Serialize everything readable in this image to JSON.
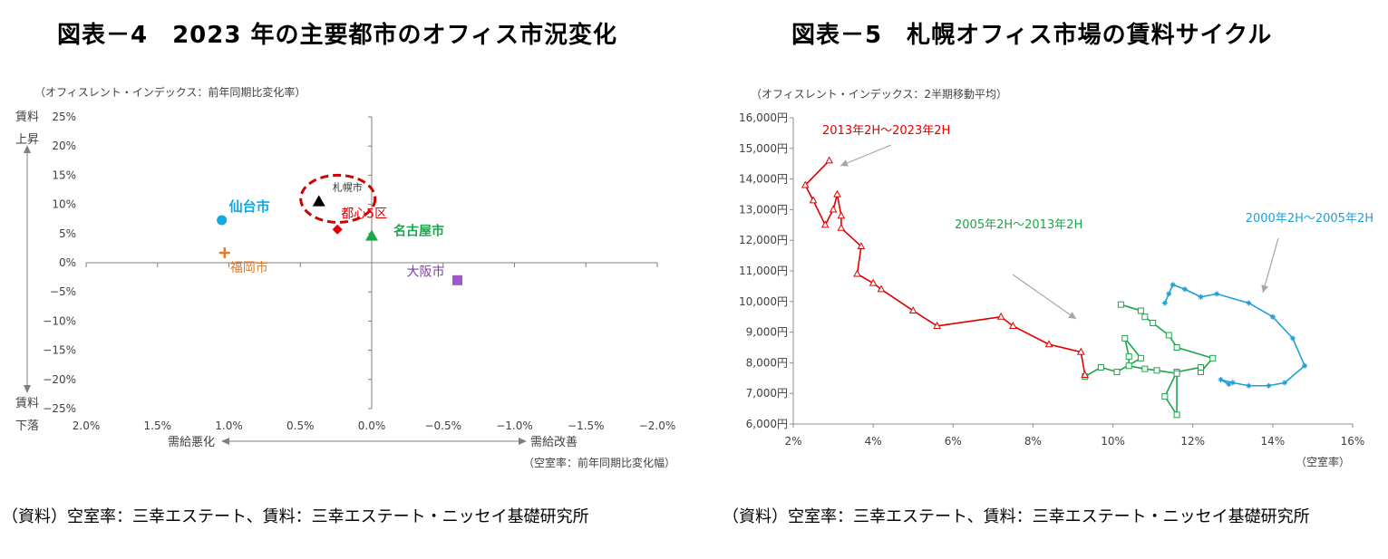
{
  "left": {
    "title": "図表－4　2023 年の主要都市のオフィス市況変化",
    "source": "（資料）空室率：三幸エステート、賃料：三幸エステート・ニッセイ基礎研究所"
  },
  "right": {
    "title": "図表－5　札幌オフィス市場の賃料サイクル",
    "source": "（資料）空室率：三幸エステート、賃料：三幸エステート・ニッセイ基礎研究所"
  },
  "chart_data": [
    {
      "type": "scatter",
      "y_caption": "（オフィスレント・インデックス：前年同期比変化率）",
      "x_caption": "（空室率：前年同期比変化幅）",
      "y_top_label_1": "賃料",
      "y_top_label_2": "上昇",
      "y_bottom_label_1": "賃料",
      "y_bottom_label_2": "下落",
      "x_left_label": "需給悪化",
      "x_right_label": "需給改善",
      "xlim": [
        2.0,
        -2.0
      ],
      "ylim": [
        -25,
        25
      ],
      "x_ticks": [
        {
          "v": 2.0,
          "label": "2.0%"
        },
        {
          "v": 1.5,
          "label": "1.5%"
        },
        {
          "v": 1.0,
          "label": "1.0%"
        },
        {
          "v": 0.5,
          "label": "0.5%"
        },
        {
          "v": 0.0,
          "label": "0.0%"
        },
        {
          "v": -0.5,
          "label": "−0.5%"
        },
        {
          "v": -1.0,
          "label": "−1.0%"
        },
        {
          "v": -1.5,
          "label": "−1.5%"
        },
        {
          "v": -2.0,
          "label": "−2.0%"
        }
      ],
      "y_ticks": [
        {
          "v": 25,
          "label": "25%"
        },
        {
          "v": 20,
          "label": "20%"
        },
        {
          "v": 15,
          "label": "15%"
        },
        {
          "v": 10,
          "label": "10%"
        },
        {
          "v": 5,
          "label": "5%"
        },
        {
          "v": 0,
          "label": "0%"
        },
        {
          "v": -5,
          "label": "−5%"
        },
        {
          "v": -10,
          "label": "−10%"
        },
        {
          "v": -15,
          "label": "−15%"
        },
        {
          "v": -20,
          "label": "−20%"
        },
        {
          "v": -25,
          "label": "−25%"
        }
      ],
      "points": [
        {
          "name": "札幌市",
          "x": 0.37,
          "y": 10.5,
          "marker": "triangle",
          "color": "#000000",
          "label_color": "#333333",
          "bold": false
        },
        {
          "name": "都心5区",
          "x": 0.24,
          "y": 5.7,
          "marker": "diamond",
          "color": "#e00000",
          "label_color": "#e00000",
          "bold": false
        },
        {
          "name": "名古屋市",
          "x": 0.0,
          "y": 4.6,
          "marker": "triangle",
          "color": "#1aa64a",
          "label_color": "#1aa64a",
          "bold": true
        },
        {
          "name": "仙台市",
          "x": 1.05,
          "y": 7.3,
          "marker": "circle",
          "color": "#12a8e0",
          "label_color": "#12a8e0",
          "bold": true
        },
        {
          "name": "福岡市",
          "x": 1.03,
          "y": 1.7,
          "marker": "plus",
          "color": "#e07b28",
          "label_color": "#e07b28",
          "bold": false
        },
        {
          "name": "大阪市",
          "x": -0.6,
          "y": -3.0,
          "marker": "square",
          "color": "#9b59c9",
          "label_color": "#7b3fa8",
          "bold": false
        }
      ],
      "highlight": "札幌市",
      "colors": {
        "axis": "#7f7f7f",
        "ellipse": "#d00000"
      }
    },
    {
      "type": "line",
      "y_caption": "（オフィスレント・インデックス：2半期移動平均）",
      "x_caption": "（空室率）",
      "xlim": [
        0.02,
        0.16
      ],
      "ylim": [
        6000,
        16000
      ],
      "x_ticks": [
        {
          "v": 0.02,
          "label": "2%"
        },
        {
          "v": 0.04,
          "label": "4%"
        },
        {
          "v": 0.06,
          "label": "6%"
        },
        {
          "v": 0.08,
          "label": "8%"
        },
        {
          "v": 0.1,
          "label": "10%"
        },
        {
          "v": 0.12,
          "label": "12%"
        },
        {
          "v": 0.14,
          "label": "14%"
        },
        {
          "v": 0.16,
          "label": "16%"
        }
      ],
      "y_ticks": [
        {
          "v": 16000,
          "label": "16,000円"
        },
        {
          "v": 15000,
          "label": "15,000円"
        },
        {
          "v": 14000,
          "label": "14,000円"
        },
        {
          "v": 13000,
          "label": "13,000円"
        },
        {
          "v": 12000,
          "label": "12,000円"
        },
        {
          "v": 11000,
          "label": "11,000円"
        },
        {
          "v": 10000,
          "label": "10,000円"
        },
        {
          "v": 9000,
          "label": "9,000円"
        },
        {
          "v": 8000,
          "label": "8,000円"
        },
        {
          "v": 7000,
          "label": "7,000円"
        },
        {
          "v": 6000,
          "label": "6,000円"
        }
      ],
      "series": [
        {
          "name": "2000年2H～2005年2H",
          "color": "#1f9fd8",
          "marker": "star",
          "points": [
            [
              0.113,
              9950
            ],
            [
              0.114,
              10250
            ],
            [
              0.115,
              10550
            ],
            [
              0.118,
              10400
            ],
            [
              0.122,
              10150
            ],
            [
              0.126,
              10250
            ],
            [
              0.134,
              9950
            ],
            [
              0.14,
              9500
            ],
            [
              0.145,
              8800
            ],
            [
              0.148,
              7900
            ],
            [
              0.143,
              7350
            ],
            [
              0.139,
              7250
            ],
            [
              0.134,
              7250
            ],
            [
              0.13,
              7350
            ],
            [
              0.127,
              7450
            ],
            [
              0.129,
              7300
            ]
          ]
        },
        {
          "name": "2005年2H～2013年2H",
          "color": "#1aa64a",
          "marker": "square",
          "points": [
            [
              0.102,
              9900
            ],
            [
              0.107,
              9700
            ],
            [
              0.108,
              9500
            ],
            [
              0.11,
              9300
            ],
            [
              0.114,
              8900
            ],
            [
              0.116,
              8500
            ],
            [
              0.125,
              8150
            ],
            [
              0.122,
              7700
            ],
            [
              0.122,
              7850
            ],
            [
              0.116,
              7700
            ],
            [
              0.113,
              6900
            ],
            [
              0.116,
              6300
            ],
            [
              0.116,
              7650
            ],
            [
              0.111,
              7750
            ],
            [
              0.108,
              7800
            ],
            [
              0.104,
              7900
            ],
            [
              0.104,
              8200
            ],
            [
              0.103,
              8800
            ],
            [
              0.107,
              8150
            ],
            [
              0.101,
              7700
            ],
            [
              0.097,
              7850
            ],
            [
              0.093,
              7550
            ]
          ]
        },
        {
          "name": "2013年2H～2023年2H",
          "color": "#e00000",
          "marker": "triangle",
          "points": [
            [
              0.093,
              7600
            ],
            [
              0.092,
              8350
            ],
            [
              0.084,
              8600
            ],
            [
              0.075,
              9200
            ],
            [
              0.072,
              9500
            ],
            [
              0.056,
              9200
            ],
            [
              0.05,
              9700
            ],
            [
              0.042,
              10400
            ],
            [
              0.04,
              10600
            ],
            [
              0.036,
              10900
            ],
            [
              0.037,
              11800
            ],
            [
              0.032,
              12400
            ],
            [
              0.032,
              12800
            ],
            [
              0.031,
              13500
            ],
            [
              0.03,
              13000
            ],
            [
              0.028,
              12500
            ],
            [
              0.025,
              13300
            ],
            [
              0.023,
              13800
            ],
            [
              0.029,
              14600
            ]
          ]
        }
      ],
      "annotation_series": "2013年2H～2023年2H",
      "arrow_color": "#a6a6a6"
    }
  ]
}
